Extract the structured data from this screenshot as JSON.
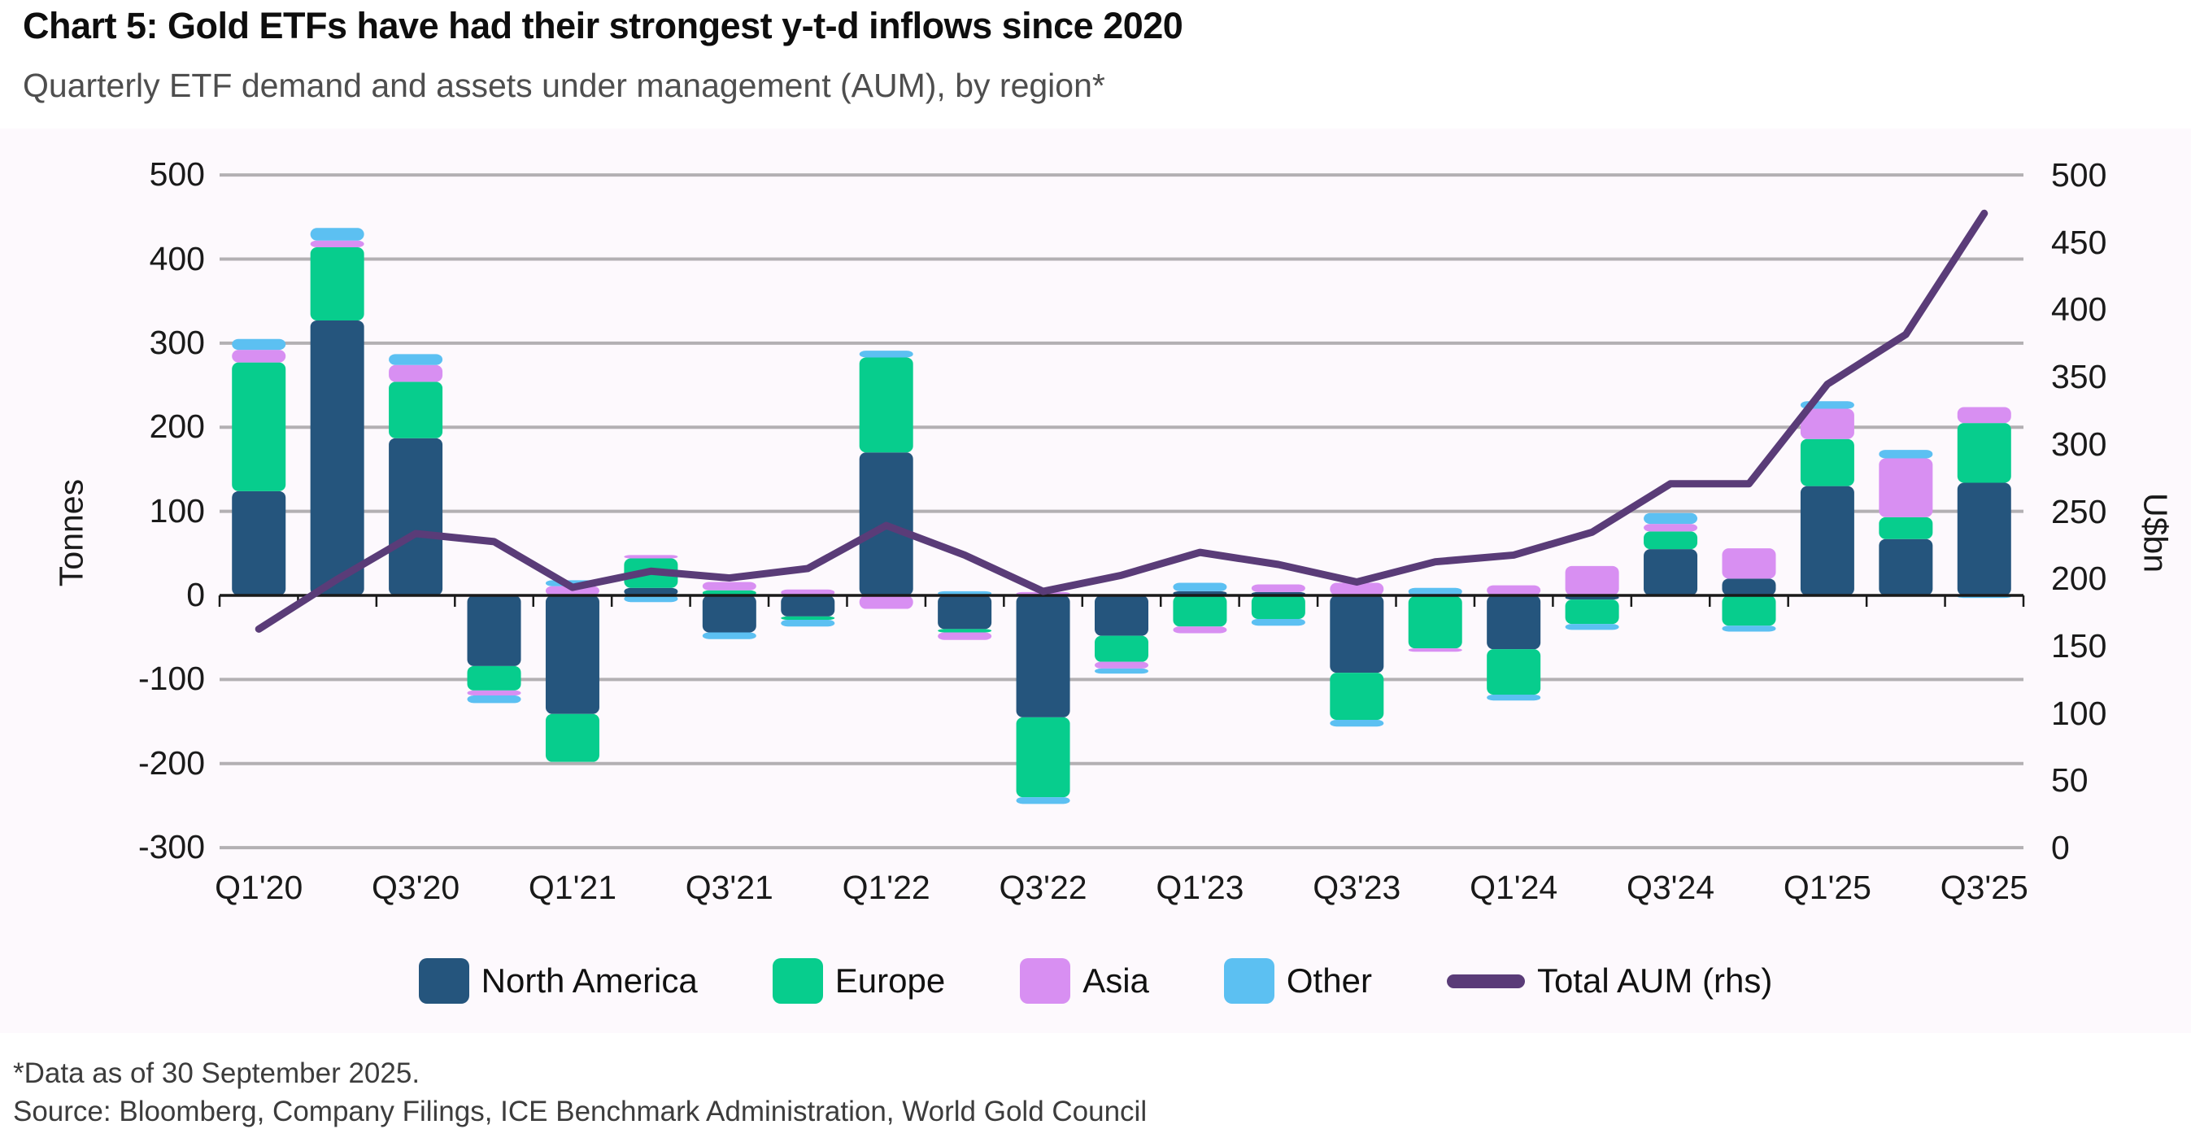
{
  "header": {
    "title": "Chart 5: Gold ETFs have had their strongest y-t-d inflows since 2020",
    "subtitle": "Quarterly ETF demand and assets under management (AUM), by region*"
  },
  "footer": {
    "footnote": "*Data as of 30 September 2025.",
    "source": "Source: Bloomberg, Company Filings, ICE Benchmark Administration, World Gold Council"
  },
  "axes": {
    "left_title": "Tonnes",
    "right_title": "U$bn",
    "left_ticks": [
      500,
      400,
      300,
      200,
      100,
      0,
      -100,
      -200,
      -300
    ],
    "right_ticks": [
      500,
      450,
      400,
      350,
      300,
      250,
      200,
      150,
      100,
      50,
      0
    ],
    "left_range": [
      -300,
      500
    ],
    "right_range": [
      0,
      500
    ],
    "x_label_every": 2
  },
  "colors": {
    "north_america": "#25557d",
    "europe": "#07cd8d",
    "asia": "#d88ff2",
    "other": "#5cc0f2",
    "aum_line": "#5a3c78",
    "gridline": "#b3b0b3",
    "axis_line": "#1a1a1a",
    "plot_bg": "#fdf9fd"
  },
  "legend": {
    "items": [
      {
        "label": "North America",
        "type": "swatch",
        "color": "#25557d"
      },
      {
        "label": "Europe",
        "type": "swatch",
        "color": "#07cd8d"
      },
      {
        "label": "Asia",
        "type": "swatch",
        "color": "#d88ff2"
      },
      {
        "label": "Other",
        "type": "swatch",
        "color": "#5cc0f2"
      },
      {
        "label": "Total AUM (rhs)",
        "type": "line",
        "color": "#5a3c78"
      }
    ]
  },
  "chart_data": {
    "type": "combo: stacked bar (left axis, tonnes) + line (right axis, U$bn)",
    "categories": [
      "Q1'20",
      "Q2'20",
      "Q3'20",
      "Q4'20",
      "Q1'21",
      "Q2'21",
      "Q3'21",
      "Q4'21",
      "Q1'22",
      "Q2'22",
      "Q3'22",
      "Q4'22",
      "Q1'23",
      "Q2'23",
      "Q3'23",
      "Q4'23",
      "Q1'24",
      "Q2'24",
      "Q3'24",
      "Q4'24",
      "Q1'25",
      "Q2'25",
      "Q3'25"
    ],
    "series": [
      {
        "name": "North America",
        "color": "#25557d",
        "values": [
          124,
          327,
          187,
          -84,
          -141,
          9,
          -44,
          -25,
          170,
          -40,
          -145,
          -48,
          5,
          4,
          -92,
          -1,
          -64,
          -5,
          55,
          20,
          130,
          67,
          134
        ]
      },
      {
        "name": "Europe",
        "color": "#07cd8d",
        "values": [
          153,
          87,
          67,
          -29,
          -57,
          35,
          6,
          -4,
          113,
          -4,
          -95,
          -31,
          -37,
          -28,
          -56,
          -62,
          -54,
          -29,
          21,
          -36,
          56,
          26,
          71
        ]
      },
      {
        "name": "Asia",
        "color": "#d88ff2",
        "values": [
          15,
          8,
          20,
          -6,
          11,
          4,
          10,
          7,
          -16,
          -9,
          4,
          -8,
          -8,
          9,
          15,
          -4,
          12,
          35,
          9,
          36,
          36,
          70,
          19
        ]
      },
      {
        "name": "Other",
        "color": "#5cc0f2",
        "values": [
          13,
          15,
          13,
          -9,
          7,
          -8,
          -8,
          -8,
          8,
          5,
          -8,
          -6,
          10,
          -8,
          -8,
          9,
          -7,
          -7,
          13,
          -7,
          9,
          10,
          -3
        ]
      }
    ],
    "line_series": {
      "name": "Total AUM (rhs)",
      "axis": "right",
      "color": "#5a3c78",
      "values": [
        163,
        200,
        234,
        228,
        194,
        206,
        201,
        208,
        240,
        218,
        191,
        203,
        220,
        211,
        198,
        213,
        218,
        235,
        271,
        271,
        345,
        382,
        472
      ]
    },
    "title": "Quarterly ETF demand and assets under management (AUM), by region",
    "xlabel": "",
    "ylabel_left": "Tonnes",
    "ylabel_right": "U$bn",
    "ylim_left": [
      -300,
      500
    ],
    "ylim_right": [
      0,
      500
    ],
    "grid": true,
    "legend_position": "bottom"
  }
}
